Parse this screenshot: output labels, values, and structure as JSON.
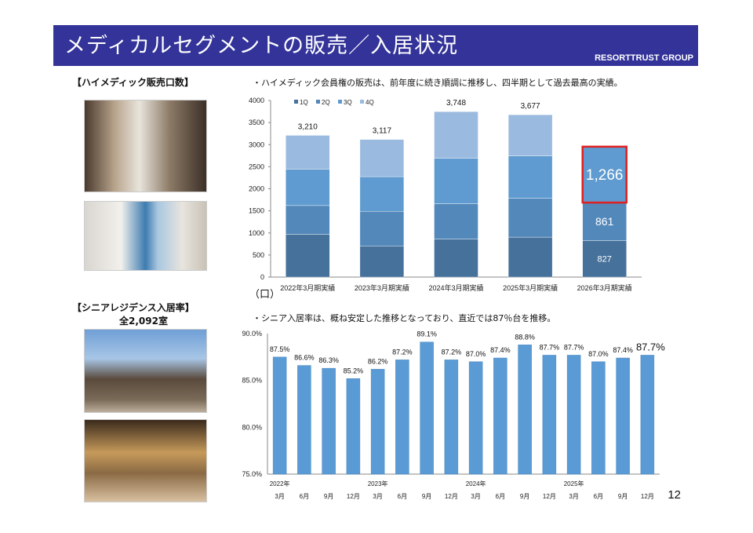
{
  "header": {
    "title": "メディカルセグメントの販売／入居状況",
    "brand": "RESORTTRUST GROUP"
  },
  "himedic": {
    "heading": "【ハイメディック販売口数】",
    "note": "・ハイメディック会員権の販売は、前年度に続き順調に推移し、四半期として過去最高の実績。",
    "unit": "（口）"
  },
  "senior": {
    "heading": "【シニアレジデンス入居率】",
    "subheading": "全2,092室",
    "note": "・シニア入居率は、概ね安定した推移となっており、直近では87％台を推移。"
  },
  "page_number": "12",
  "colors": {
    "header": "#333399",
    "q1": "#46719b",
    "q2": "#5388bb",
    "q3": "#5f9bd0",
    "q4": "#9bbadf",
    "occupancy": "#5b9bd5",
    "highlight": "#e02020"
  },
  "chart_data": [
    {
      "type": "bar",
      "stacked": true,
      "categories": [
        "2022年3月期実績",
        "2023年3月期実績",
        "2024年3月期実績",
        "2025年3月期実績",
        "2026年3月期実績"
      ],
      "series": [
        {
          "name": "1Q",
          "values": [
            970,
            705,
            860,
            905,
            827
          ]
        },
        {
          "name": "2Q",
          "values": [
            650,
            785,
            800,
            880,
            861
          ]
        },
        {
          "name": "3Q",
          "values": [
            825,
            785,
            1030,
            960,
            1266
          ]
        },
        {
          "name": "4Q",
          "values": [
            765,
            842,
            1058,
            932,
            null
          ]
        }
      ],
      "totals": [
        "3,210",
        "3,117",
        "3,748",
        "3,677",
        null
      ],
      "data_labels_last": [
        "827",
        "861",
        "1,266"
      ],
      "ylim": [
        0,
        4000
      ],
      "yticks": [
        "0",
        "500",
        "1000",
        "1500",
        "2000",
        "2500",
        "3000",
        "3500",
        "4000"
      ],
      "ylabel": "（口）",
      "legend": "top-left",
      "highlight": "2026年3月期実績 3Q"
    },
    {
      "type": "bar",
      "categories": [
        "3月",
        "6月",
        "9月",
        "12月",
        "3月",
        "6月",
        "9月",
        "12月",
        "3月",
        "6月",
        "9月",
        "12月",
        "3月",
        "6月",
        "9月",
        "12月"
      ],
      "year_labels": [
        "2022年",
        "2023年",
        "2024年",
        "2025年"
      ],
      "values": [
        87.5,
        86.6,
        86.3,
        85.2,
        86.2,
        87.2,
        89.1,
        87.2,
        87.0,
        87.4,
        88.8,
        87.7,
        87.7,
        87.0,
        87.4,
        87.7
      ],
      "labels": [
        "87.5%",
        "86.6%",
        "86.3%",
        "85.2%",
        "86.2%",
        "87.2%",
        "89.1%",
        "87.2%",
        "87.0%",
        "87.4%",
        "88.8%",
        "87.7%",
        "87.7%",
        "87.0%",
        "87.4%",
        "87.7%"
      ],
      "ylim": [
        75,
        90
      ],
      "yticks": [
        "75.0%",
        "80.0%",
        "85.0%",
        "90.0%"
      ]
    }
  ]
}
